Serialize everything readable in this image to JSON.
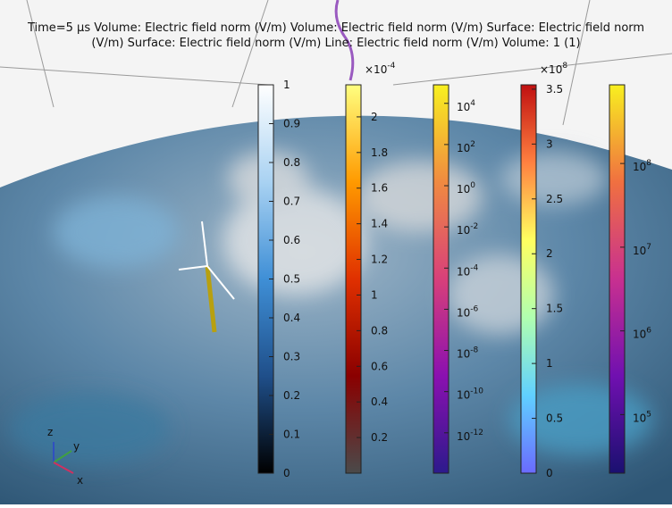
{
  "title": {
    "line1": "Time=5 µs Volume: Electric field norm (V/m)  Volume: Electric field norm (V/m)  Surface: Electric field norm",
    "line2": "(V/m)  Surface: Electric field norm (V/m)  Line: Electric field norm (V/m)  Volume: 1 (1)"
  },
  "colorbars": [
    {
      "scale": "linear",
      "range": [
        0,
        1
      ],
      "colors": [
        "#000000",
        "#1f4f8a",
        "#3f8fd6",
        "#a9d2f2",
        "#ffffff"
      ],
      "ticks": [
        0,
        0.1,
        0.2,
        0.3,
        0.4,
        0.5,
        0.6,
        0.7,
        0.8,
        0.9,
        1
      ]
    },
    {
      "scale": "linear",
      "range": [
        0,
        2.18
      ],
      "colors": [
        "#4a4a4a",
        "#8a0000",
        "#e03000",
        "#ff9a00",
        "#ffff80"
      ],
      "multiplier": {
        "base": "×10",
        "exponent": "-4"
      },
      "ticks": [
        0.2,
        0.4,
        0.6,
        0.8,
        1,
        1.2,
        1.4,
        1.6,
        1.8,
        2
      ]
    },
    {
      "scale": "log",
      "range": [
        -13.96,
        4.9
      ],
      "colors": [
        "#2c1a8c",
        "#8a10b0",
        "#d8407a",
        "#f08a40",
        "#f8f020"
      ],
      "ticks": [
        {
          "value": 4,
          "base": "10",
          "exponent": "4"
        },
        {
          "value": 2,
          "base": "10",
          "exponent": "2"
        },
        {
          "value": 0,
          "base": "10",
          "exponent": "0"
        },
        {
          "value": -2,
          "base": "10",
          "exponent": "-2"
        },
        {
          "value": -4,
          "base": "10",
          "exponent": "-4"
        },
        {
          "value": -6,
          "base": "10",
          "exponent": "-6"
        },
        {
          "value": -8,
          "base": "10",
          "exponent": "-8"
        },
        {
          "value": -10,
          "base": "10",
          "exponent": "-10"
        },
        {
          "value": -12,
          "base": "10",
          "exponent": "-12"
        }
      ]
    },
    {
      "scale": "linear",
      "range": [
        0,
        3.54
      ],
      "colors": [
        "#6a6aff",
        "#60d0ff",
        "#b0ffb0",
        "#ffff60",
        "#ff8040",
        "#c01010"
      ],
      "multiplier": {
        "base": "×10",
        "exponent": "8"
      },
      "ticks": [
        0,
        0.5,
        1,
        1.5,
        2,
        2.5,
        3,
        3.5
      ]
    },
    {
      "scale": "log",
      "range": [
        4.3,
        8.94
      ],
      "colors": [
        "#1a1070",
        "#7010b0",
        "#c83090",
        "#f07040",
        "#f8f020"
      ],
      "ticks": [
        {
          "value": 5,
          "base": "10",
          "exponent": "5"
        },
        {
          "value": 6,
          "base": "10",
          "exponent": "6"
        },
        {
          "value": 7,
          "base": "10",
          "exponent": "7"
        },
        {
          "value": 8,
          "base": "10",
          "exponent": "8"
        }
      ]
    }
  ],
  "triad": {
    "z": "z",
    "y": "y",
    "x": "x"
  }
}
